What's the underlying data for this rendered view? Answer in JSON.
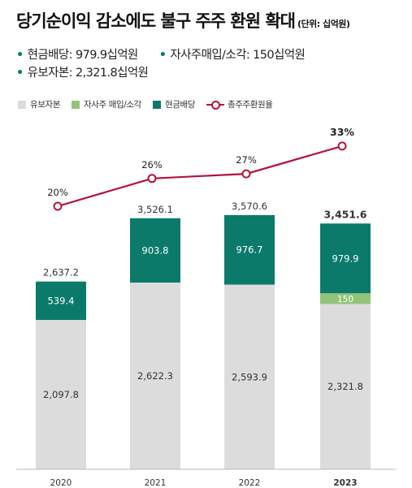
{
  "header": {
    "title": "당기순이익 감소에도 불구 주주 환원 확대",
    "unit": "(단위: 십억원)"
  },
  "summary": {
    "items": [
      {
        "label": "현금배당",
        "value": "979.9십억원"
      },
      {
        "label": "자사주매입/소각",
        "value": "150십억원"
      },
      {
        "label": "유보자본",
        "value": "2,321.8십억원"
      }
    ]
  },
  "legend": {
    "retained": "유보자본",
    "buyback": "자사주 매입/소각",
    "dividend": "현금배당",
    "ratio": "총주주환원율"
  },
  "colors": {
    "retained": "#dcdcdc",
    "buyback": "#92c37a",
    "dividend": "#0b7a6b",
    "ratio_line": "#b5123c",
    "bullet": "#0b7a6b"
  },
  "chart_data": {
    "type": "bar",
    "stacked": true,
    "categories": [
      "2020",
      "2021",
      "2022",
      "2023"
    ],
    "series": [
      {
        "name": "유보자본",
        "values": [
          2097.8,
          2622.3,
          2593.9,
          2321.8
        ],
        "labels": [
          "2,097.8",
          "2,622.3",
          "2,593.9",
          "2,321.8"
        ]
      },
      {
        "name": "자사주 매입/소각",
        "values": [
          0,
          0,
          0,
          150
        ],
        "labels": [
          "",
          "",
          "",
          "150"
        ]
      },
      {
        "name": "현금배당",
        "values": [
          539.4,
          903.8,
          976.7,
          979.9
        ],
        "labels": [
          "539.4",
          "903.8",
          "976.7",
          "979.9"
        ]
      }
    ],
    "totals": [
      2637.2,
      3526.1,
      3570.6,
      3451.6
    ],
    "total_labels": [
      "2,637.2",
      "3,526.1",
      "3,570.6",
      "3,451.6"
    ],
    "line": {
      "name": "총주주환원율",
      "values": [
        20,
        26,
        27,
        33
      ],
      "labels": [
        "20%",
        "26%",
        "27%",
        "33%"
      ]
    },
    "highlight_category": "2023",
    "ylim": [
      0,
      3700
    ],
    "grid": false,
    "legend_position": "top-left"
  }
}
